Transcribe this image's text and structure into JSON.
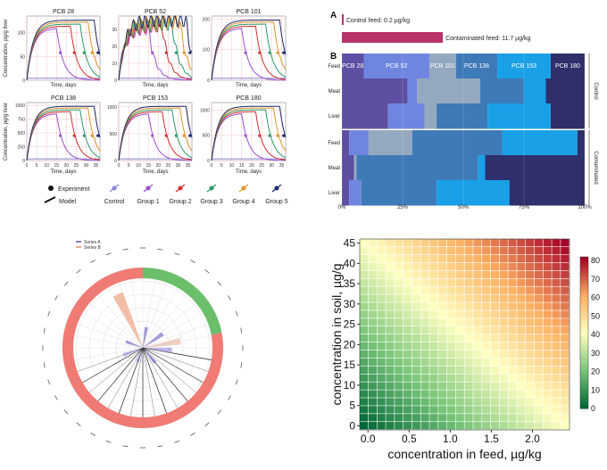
{
  "chart_data": [
    {
      "type": "line",
      "name": "pcb-time-course",
      "xlabel": "Time, days",
      "ylabel": "Concentration, pg/g liver",
      "xticks": [
        0,
        5,
        10,
        15,
        20,
        25,
        30,
        35
      ],
      "xlim": [
        0,
        37
      ],
      "panels": [
        {
          "title": "PCB 28",
          "yticks": [
            0,
            50,
            100
          ],
          "ylim": [
            0,
            135
          ]
        },
        {
          "title": "PCB 52",
          "yticks": [
            0,
            10,
            20,
            30
          ],
          "ylim": [
            0,
            38
          ]
        },
        {
          "title": "PCB 101",
          "yticks": [
            0,
            100,
            200
          ],
          "ylim": [
            0,
            210
          ]
        },
        {
          "title": "PCB 138",
          "yticks": [
            0,
            250,
            500,
            750,
            1000
          ],
          "ylim": [
            0,
            1050
          ]
        },
        {
          "title": "PCB 153",
          "yticks": [
            0,
            500,
            1000
          ],
          "ylim": [
            0,
            1080
          ]
        },
        {
          "title": "PCB 180",
          "yticks": [
            0,
            500,
            1000
          ],
          "ylim": [
            0,
            1150
          ]
        }
      ],
      "groups": [
        {
          "name": "Control",
          "color": "#8a86d0",
          "stop": 100
        },
        {
          "name": "Group 1",
          "color": "#9a4fd0",
          "stop": 15
        },
        {
          "name": "Group 2",
          "color": "#d0302e",
          "stop": 22
        },
        {
          "name": "Group 3",
          "color": "#2a9a6a",
          "stop": 27
        },
        {
          "name": "Group 4",
          "color": "#e0952a",
          "stop": 31
        },
        {
          "name": "Group 5",
          "color": "#1a2a6a",
          "stop": 34
        }
      ],
      "legend": {
        "experiment": "Experiment",
        "model": "Model"
      }
    },
    {
      "type": "bar",
      "name": "feed-concentration",
      "panel_label": "A",
      "series": [
        {
          "label": "Control feed: 0.2 µg/kg",
          "value": 0.2,
          "color": "#b8336a"
        },
        {
          "label": "Contaminated feed: 11.7 µg/kg",
          "value": 11.7,
          "color": "#b8336a"
        }
      ],
      "xlim": [
        0,
        30
      ]
    },
    {
      "type": "bar",
      "name": "pcb-composition",
      "panel_label": "B",
      "stacked": true,
      "percent": true,
      "series_names": [
        "PCB 28",
        "PCB 52",
        "PCB 101",
        "PCB 138",
        "PCB 153",
        "PCB 180"
      ],
      "colors": [
        "#5e4fa2",
        "#6f86e0",
        "#94a8c0",
        "#3f7ab8",
        "#1aa0e6",
        "#2e2f6b"
      ],
      "xticks": [
        "0%",
        "25%",
        "50%",
        "75%",
        "100%"
      ],
      "groups": [
        {
          "label": "Control",
          "rows": [
            {
              "name": "Feed",
              "values": [
                9,
                27,
                11,
                17,
                22,
                14
              ]
            },
            {
              "name": "Meat",
              "values": [
                27,
                4,
                26,
                18,
                9,
                16
              ]
            },
            {
              "name": "Liver",
              "values": [
                19,
                15,
                5,
                21,
                26,
                14
              ]
            }
          ]
        },
        {
          "label": "Contaminated",
          "rows": [
            {
              "name": "Feed",
              "values": [
                3,
                8,
                18,
                37,
                31,
                3
              ]
            },
            {
              "name": "Meat",
              "values": [
                5,
                0,
                1,
                50,
                3,
                41
              ]
            },
            {
              "name": "Liver",
              "values": [
                3,
                5,
                0,
                31,
                30,
                31
              ]
            }
          ]
        }
      ]
    },
    {
      "type": "radar",
      "name": "polar-chart",
      "legend": [
        "Series A",
        "Series B"
      ],
      "segments": [
        {
          "label": "green",
          "fraction": 0.22,
          "color": "#6bbf6b"
        },
        {
          "label": "red",
          "fraction": 0.78,
          "color": "#f07a74"
        }
      ],
      "spikes": [
        {
          "angle": 335,
          "value": 0.85,
          "color": "#f0a78a"
        },
        {
          "angle": 10,
          "value": 0.3,
          "color": "#8a78c8"
        },
        {
          "angle": 55,
          "value": 0.35,
          "color": "#8a78c8"
        },
        {
          "angle": 80,
          "value": 0.55,
          "color": "#e8c0b0"
        },
        {
          "angle": 95,
          "value": 0.42,
          "color": "#a89ad8"
        },
        {
          "angle": 140,
          "value": 0.28,
          "color": "#8a78c8"
        },
        {
          "angle": 200,
          "value": 0.22,
          "color": "#8a78c8"
        },
        {
          "angle": 250,
          "value": 0.3,
          "color": "#a89ad8"
        },
        {
          "angle": 290,
          "value": 0.26,
          "color": "#8a78c8"
        }
      ]
    },
    {
      "type": "heatmap",
      "name": "soil-feed-heatmap",
      "xlabel": "concentration in feed, µg/kg",
      "ylabel": "concentration in soil, µg/g",
      "xticks": [
        "0.0",
        "0.5",
        "1.0",
        "1.5",
        "2.0"
      ],
      "xtick_values": [
        0,
        0.5,
        1.0,
        1.5,
        2.0
      ],
      "yticks": [
        "0",
        "5",
        "10",
        "15",
        "20",
        "25",
        "30",
        "35",
        "40",
        "45"
      ],
      "ytick_values": [
        0,
        5,
        10,
        15,
        20,
        25,
        30,
        35,
        40,
        45
      ],
      "xlim": [
        -0.1,
        2.45
      ],
      "ylim": [
        -1,
        46
      ],
      "colorbar_ticks": [
        "0",
        "10",
        "20",
        "30",
        "40",
        "50",
        "60",
        "70",
        "80"
      ],
      "colorbar_values": [
        0,
        10,
        20,
        30,
        40,
        50,
        60,
        70,
        80
      ],
      "value_range": [
        0,
        82
      ],
      "nx": 24,
      "ny": 24
    }
  ]
}
